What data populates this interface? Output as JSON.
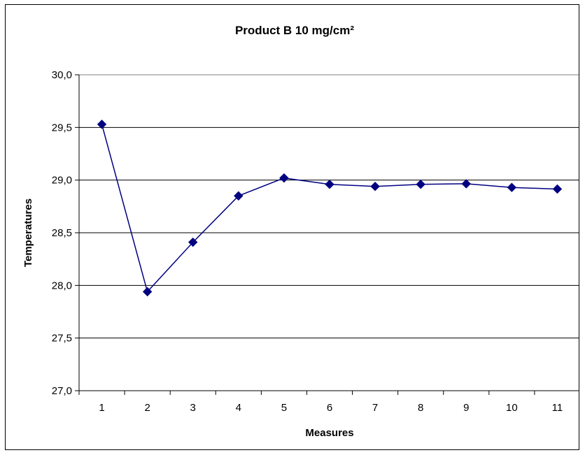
{
  "chart_data": {
    "type": "line",
    "title": "Product B 10 mg/cm²",
    "xlabel": "Measures",
    "ylabel": "Temperatures",
    "categories": [
      "1",
      "2",
      "3",
      "4",
      "5",
      "6",
      "7",
      "8",
      "9",
      "10",
      "11"
    ],
    "series": [
      {
        "values": [
          29.53,
          27.94,
          28.41,
          28.85,
          29.02,
          28.96,
          28.94,
          28.96,
          28.965,
          28.93,
          28.915
        ]
      }
    ],
    "ylim": [
      27.0,
      30.0
    ],
    "y_ticks": [
      "27,0",
      "27,5",
      "28,0",
      "28,5",
      "29,0",
      "29,5",
      "30,0"
    ],
    "grid": true,
    "legend": "none",
    "colors": {
      "line": "#000080",
      "marker": "#000080",
      "grid": "#000000",
      "frame": "#000000"
    }
  }
}
